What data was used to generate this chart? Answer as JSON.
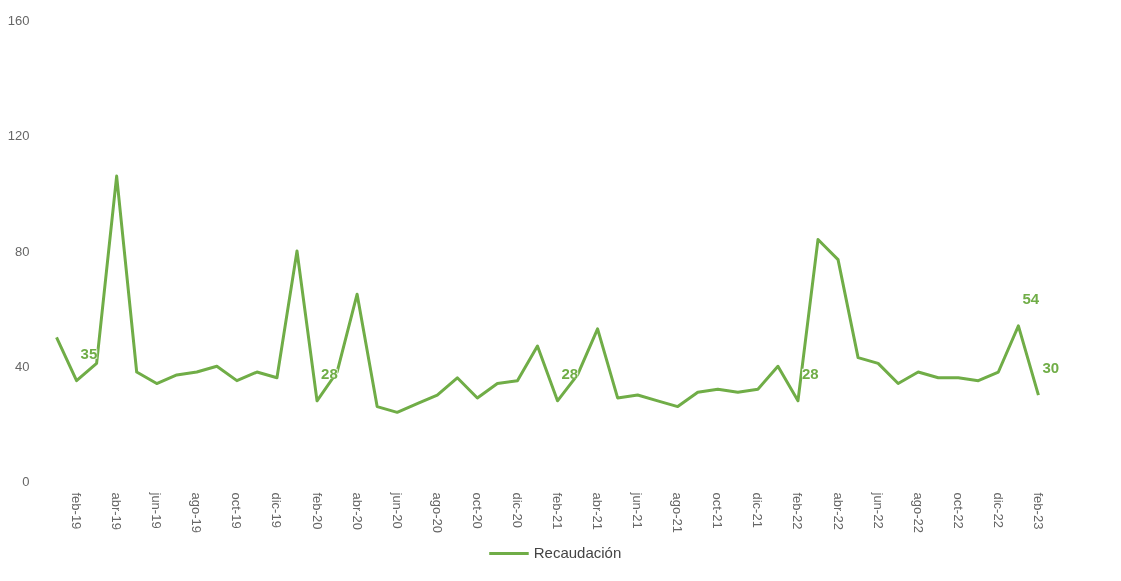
{
  "chart_data": {
    "type": "line",
    "categories": [
      null,
      "feb-19",
      null,
      "abr-19",
      null,
      "jun-19",
      null,
      "ago-19",
      null,
      "oct-19",
      null,
      "dic-19",
      null,
      "feb-20",
      null,
      "abr-20",
      null,
      "jun-20",
      null,
      "ago-20",
      null,
      "oct-20",
      null,
      "dic-20",
      null,
      "feb-21",
      null,
      "abr-21",
      null,
      "jun-21",
      null,
      "ago-21",
      null,
      "oct-21",
      null,
      "dic-21",
      null,
      "feb-22",
      null,
      "abr-22",
      null,
      "jun-22",
      null,
      "ago-22",
      null,
      "oct-22",
      null,
      "dic-22",
      null,
      "feb-23"
    ],
    "series": [
      {
        "name": "Recaudación",
        "color": "#70ad47",
        "values": [
          50,
          35,
          41,
          106,
          38,
          34,
          37,
          38,
          40,
          35,
          38,
          36,
          80,
          28,
          38,
          65,
          26,
          24,
          27,
          30,
          36,
          29,
          34,
          35,
          47,
          28,
          37,
          53,
          29,
          30,
          28,
          26,
          31,
          32,
          31,
          32,
          40,
          28,
          84,
          77,
          43,
          41,
          34,
          38,
          36,
          36,
          35,
          38,
          54,
          30
        ],
        "value_labels": [
          null,
          "35",
          null,
          null,
          null,
          null,
          null,
          null,
          null,
          null,
          null,
          null,
          null,
          "28",
          null,
          null,
          null,
          null,
          null,
          null,
          null,
          null,
          null,
          null,
          null,
          "28",
          null,
          null,
          null,
          null,
          null,
          null,
          null,
          null,
          null,
          null,
          null,
          "28",
          null,
          null,
          null,
          null,
          null,
          null,
          null,
          null,
          null,
          null,
          "54",
          "30"
        ]
      }
    ],
    "ylim": [
      0,
      160
    ],
    "yticks": [
      0,
      40,
      80,
      120,
      160
    ],
    "grid": false,
    "legend": "bottom",
    "marker": "none",
    "line_style": "solid"
  }
}
